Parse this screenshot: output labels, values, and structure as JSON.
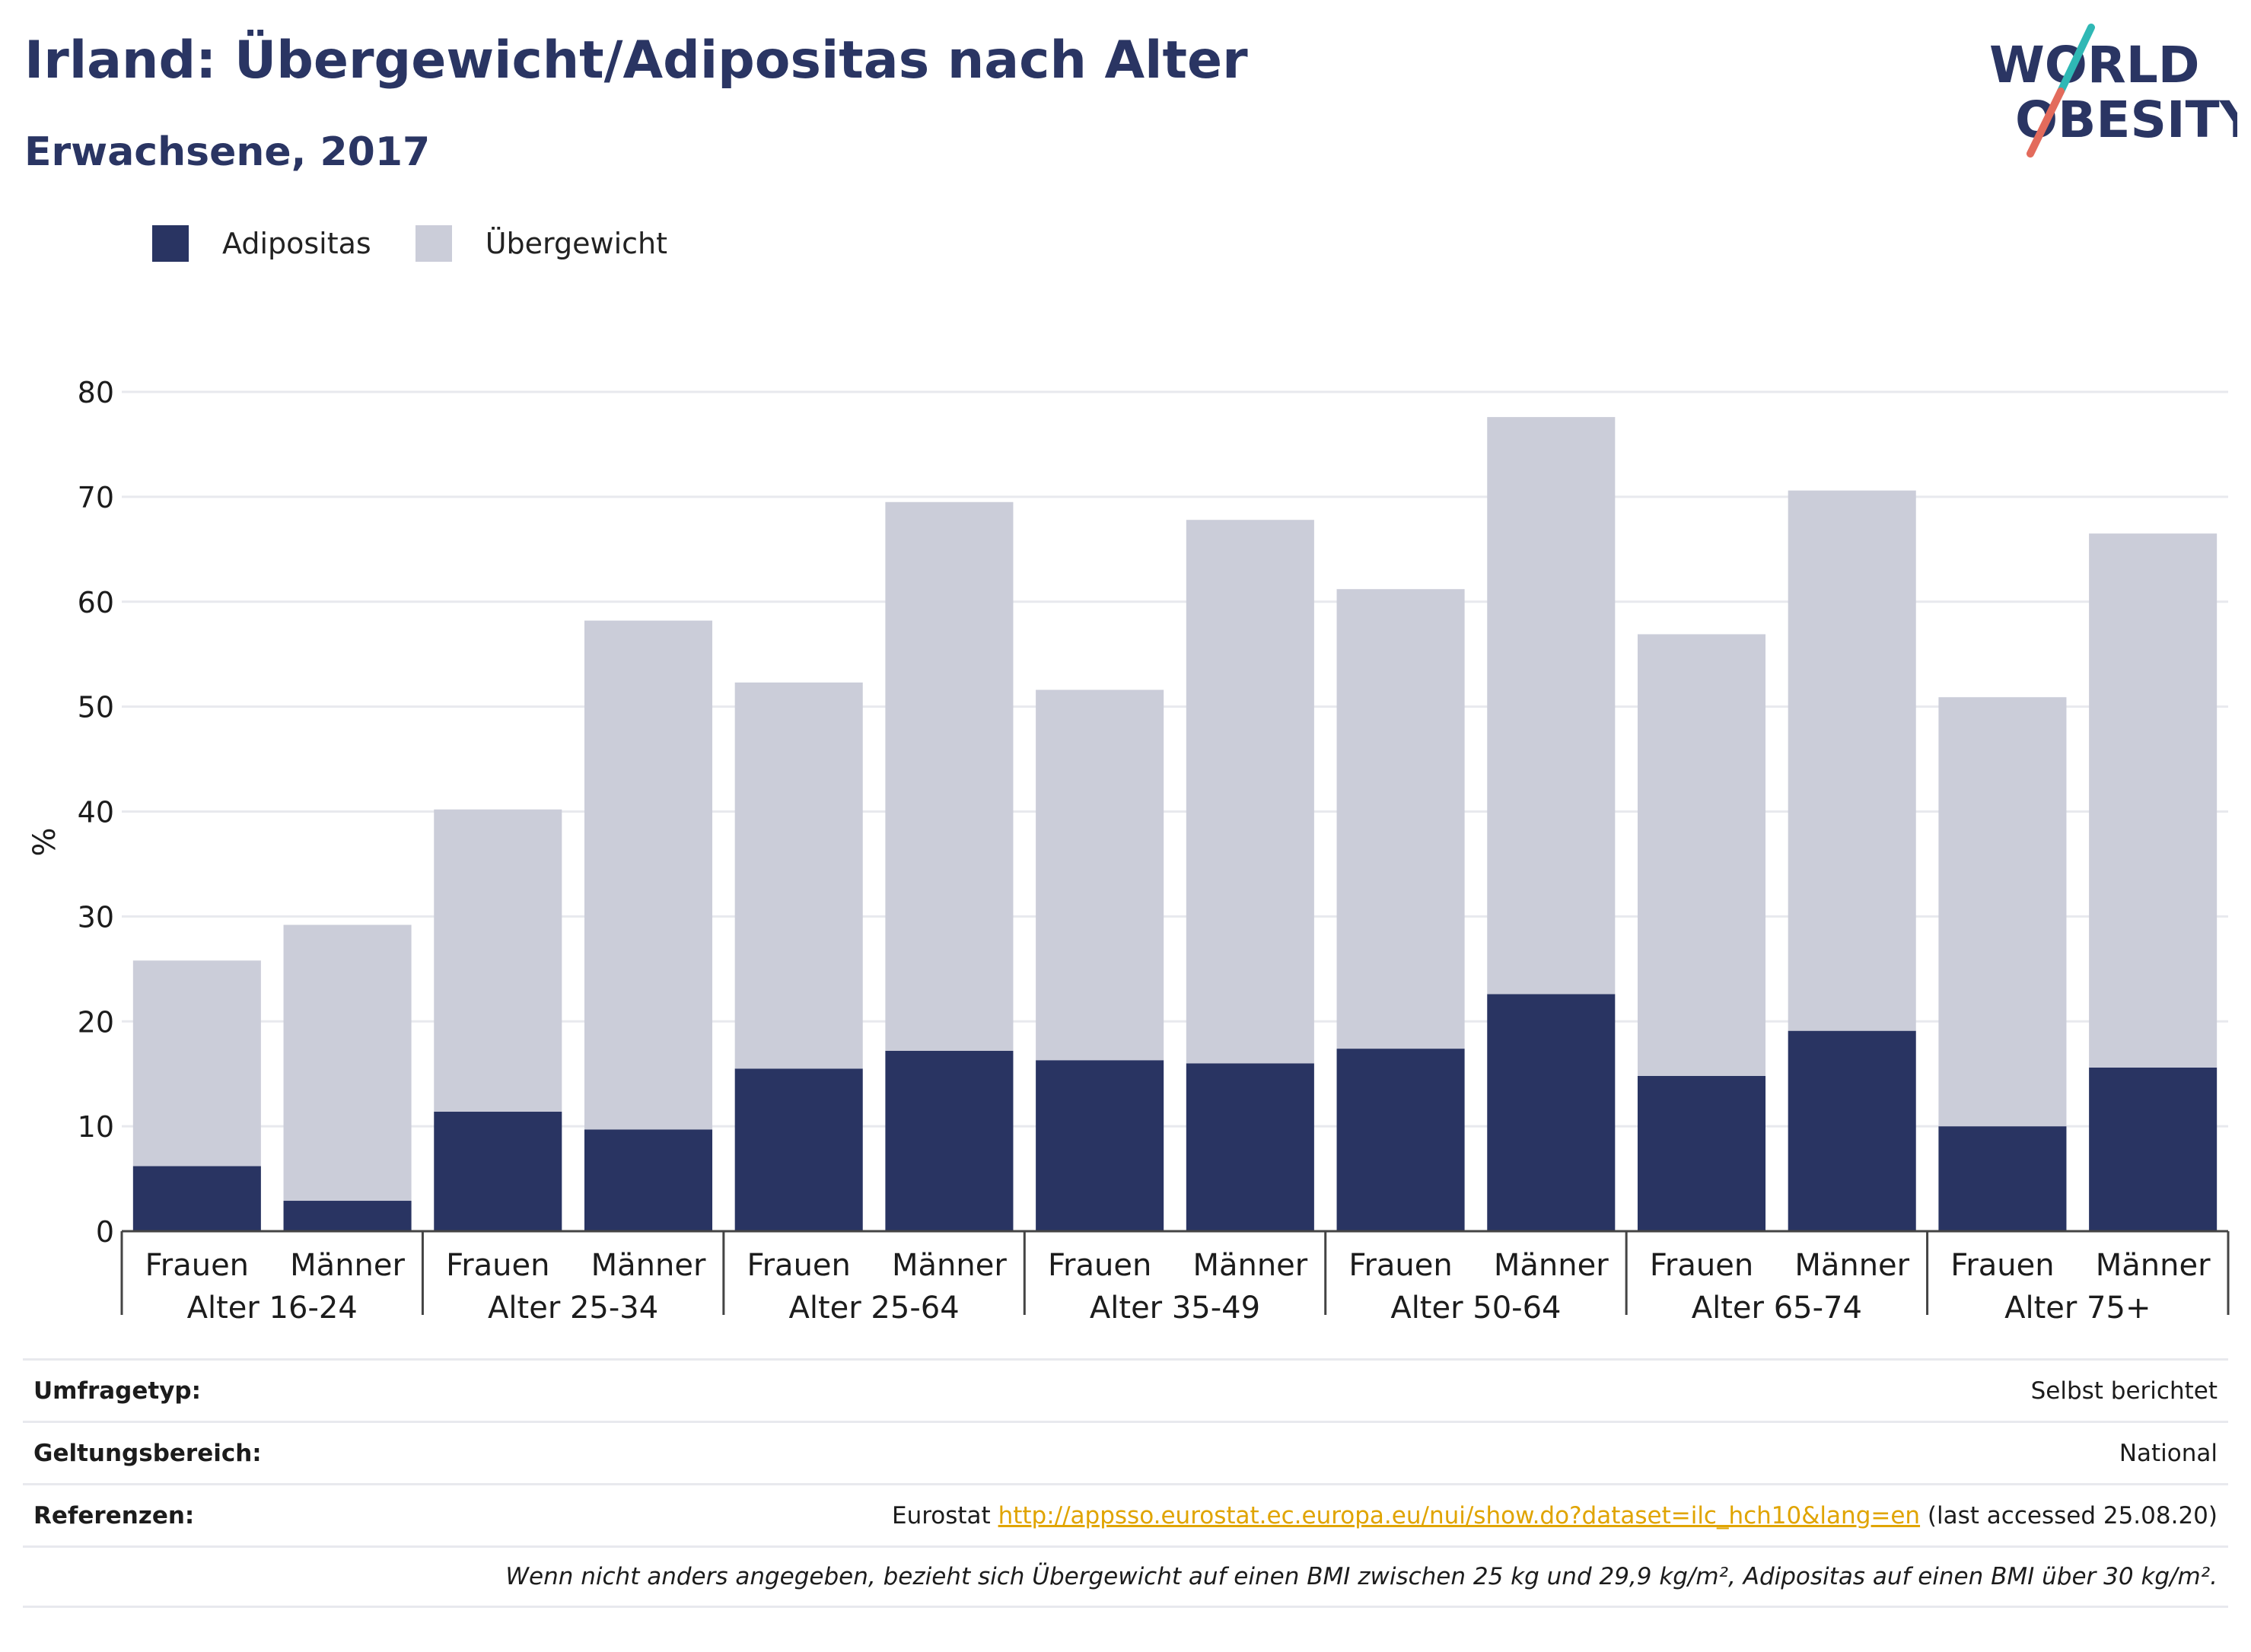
{
  "header": {
    "title": "Irland: Übergewicht/Adipositas nach Alter",
    "subtitle": "Erwachsene, 2017"
  },
  "logo": {
    "line1": "WORLD",
    "line2": "OBESITY"
  },
  "colors": {
    "obesity": "#293462",
    "overweight": "#cbcdd9",
    "text": "#1c1c1c",
    "grid": "#e8e9ee",
    "link": "#e0a400"
  },
  "chart_data": {
    "type": "bar",
    "stacked": true,
    "ylabel": "%",
    "ylim": [
      0,
      80
    ],
    "yticks": [
      0,
      10,
      20,
      30,
      40,
      50,
      60,
      70,
      80
    ],
    "grid": true,
    "legend_position": "top-left",
    "groups": [
      "Alter 16-24",
      "Alter 25-34",
      "Alter 25-64",
      "Alter 35-49",
      "Alter 50-64",
      "Alter 65-74",
      "Alter 75+"
    ],
    "subcategories": [
      "Frauen",
      "Männer"
    ],
    "series": [
      {
        "name": "Adipositas",
        "values": [
          6.2,
          2.9,
          11.4,
          9.7,
          15.5,
          17.2,
          16.3,
          16.0,
          17.4,
          22.6,
          14.8,
          19.1,
          10.0,
          15.6
        ]
      },
      {
        "name": "Übergewicht",
        "values": [
          19.6,
          26.3,
          28.8,
          48.5,
          36.8,
          52.3,
          35.3,
          51.8,
          43.8,
          55.0,
          42.1,
          51.5,
          40.9,
          50.9
        ]
      }
    ]
  },
  "info": {
    "survey_label": "Umfragetyp:",
    "survey_value": "Selbst berichtet",
    "scope_label": "Geltungsbereich:",
    "scope_value": "National",
    "refs_label": "Referenzen:",
    "refs_prefix": "Eurostat",
    "refs_link": "http://appsso.eurostat.ec.europa.eu/nui/show.do?dataset=ilc_hch10&lang=en",
    "refs_suffix": "(last accessed 25.08.20)",
    "note": "Wenn nicht anders angegeben, bezieht sich Übergewicht auf einen BMI zwischen 25 kg und 29,9 kg/m², Adipositas auf einen BMI über 30 kg/m²."
  }
}
